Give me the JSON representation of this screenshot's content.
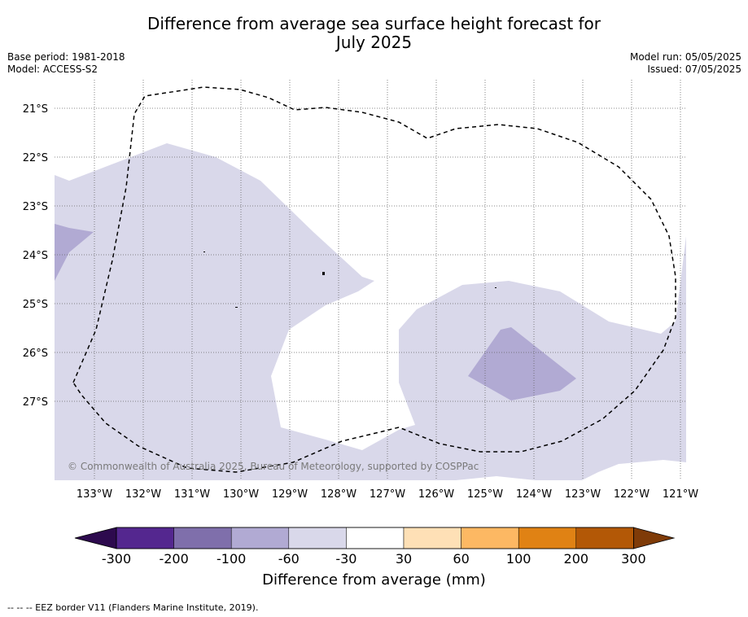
{
  "title_line1": "Difference from average sea surface height forecast for",
  "title_line2": "July 2025",
  "meta": {
    "base_period": "Base period: 1981-2018",
    "model": "Model: ACCESS-S2",
    "model_run": "Model run: 05/05/2025",
    "issued": "Issued: 07/05/2025"
  },
  "map": {
    "lat_labels": [
      "21°S",
      "22°S",
      "23°S",
      "24°S",
      "25°S",
      "26°S",
      "27°S"
    ],
    "lon_labels": [
      "133°W",
      "132°W",
      "131°W",
      "130°W",
      "129°W",
      "128°W",
      "127°W",
      "126°W",
      "125°W",
      "124°W",
      "123°W",
      "122°W",
      "121°W"
    ],
    "credit": "© Commonwealth of Australia 2025, Bureau of Meteorology, supported by COSPPac",
    "eez_color": "#000000"
  },
  "colorbar": {
    "ticks": [
      "-300",
      "-200",
      "-100",
      "-60",
      "-30",
      "30",
      "60",
      "100",
      "200",
      "300"
    ],
    "colors": [
      "#2d0a4e",
      "#54278f",
      "#7f6fab",
      "#b1aad3",
      "#d9d8ea",
      "#ffffff",
      "#fee0b6",
      "#fdb863",
      "#e08214",
      "#b35806",
      "#7f3b08"
    ],
    "title": "Difference from average (mm)"
  },
  "footnote": "--  --  -- EEZ border V11 (Flanders Marine Institute, 2019)."
}
